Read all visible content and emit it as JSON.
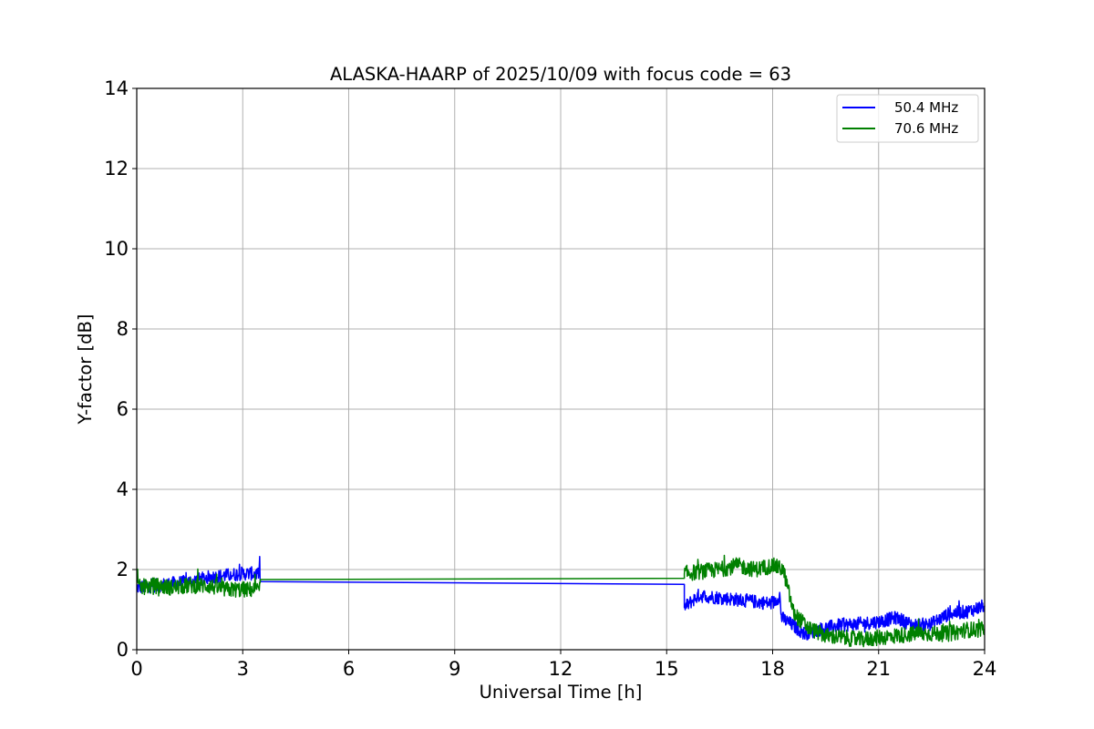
{
  "chart_data": {
    "type": "line",
    "title": "ALASKA-HAARP of 2025/10/09 with focus code = 63",
    "xlabel": "Universal Time [h]",
    "ylabel": "Y-factor [dB]",
    "xlim": [
      0,
      24
    ],
    "ylim": [
      0,
      14
    ],
    "xticks": [
      "0",
      "3",
      "6",
      "9",
      "12",
      "15",
      "18",
      "21",
      "24"
    ],
    "yticks": [
      "0",
      "2",
      "4",
      "6",
      "8",
      "10",
      "12",
      "14"
    ],
    "grid": true,
    "legend_position": "top-right",
    "series": [
      {
        "name": "50.4 MHz",
        "color": "#0000ff",
        "noise": 0.17,
        "x": [
          0,
          0.5,
          1.0,
          1.5,
          2.0,
          2.5,
          3.0,
          3.49,
          3.5,
          15.5,
          15.5,
          15.9,
          16.5,
          17.0,
          17.5,
          18.0,
          18.2,
          18.25,
          18.5,
          18.9,
          19.3,
          19.8,
          20.5,
          21.0,
          21.5,
          22.0,
          22.5,
          23.0,
          23.5,
          24.0
        ],
        "y": [
          1.55,
          1.6,
          1.65,
          1.7,
          1.8,
          1.85,
          1.9,
          1.9,
          1.7,
          1.63,
          1.05,
          1.35,
          1.3,
          1.25,
          1.2,
          1.15,
          1.35,
          0.8,
          0.65,
          0.4,
          0.5,
          0.6,
          0.65,
          0.7,
          0.8,
          0.6,
          0.65,
          0.9,
          0.95,
          1.1
        ]
      },
      {
        "name": "70.6 MHz",
        "color": "#008000",
        "noise": 0.2,
        "x": [
          0,
          0.5,
          1.0,
          1.5,
          2.0,
          2.5,
          3.0,
          3.49,
          3.5,
          15.5,
          15.5,
          16.0,
          16.5,
          17.0,
          17.5,
          18.0,
          18.3,
          18.6,
          19.0,
          19.5,
          20.0,
          20.5,
          21.0,
          21.5,
          22.0,
          22.5,
          23.0,
          23.5,
          24.0
        ],
        "y": [
          1.55,
          1.6,
          1.55,
          1.6,
          1.6,
          1.5,
          1.5,
          1.5,
          1.75,
          1.78,
          1.9,
          1.95,
          2.0,
          2.1,
          2.0,
          2.1,
          2.0,
          0.9,
          0.55,
          0.35,
          0.3,
          0.25,
          0.3,
          0.35,
          0.4,
          0.4,
          0.4,
          0.5,
          0.5
        ]
      }
    ]
  }
}
